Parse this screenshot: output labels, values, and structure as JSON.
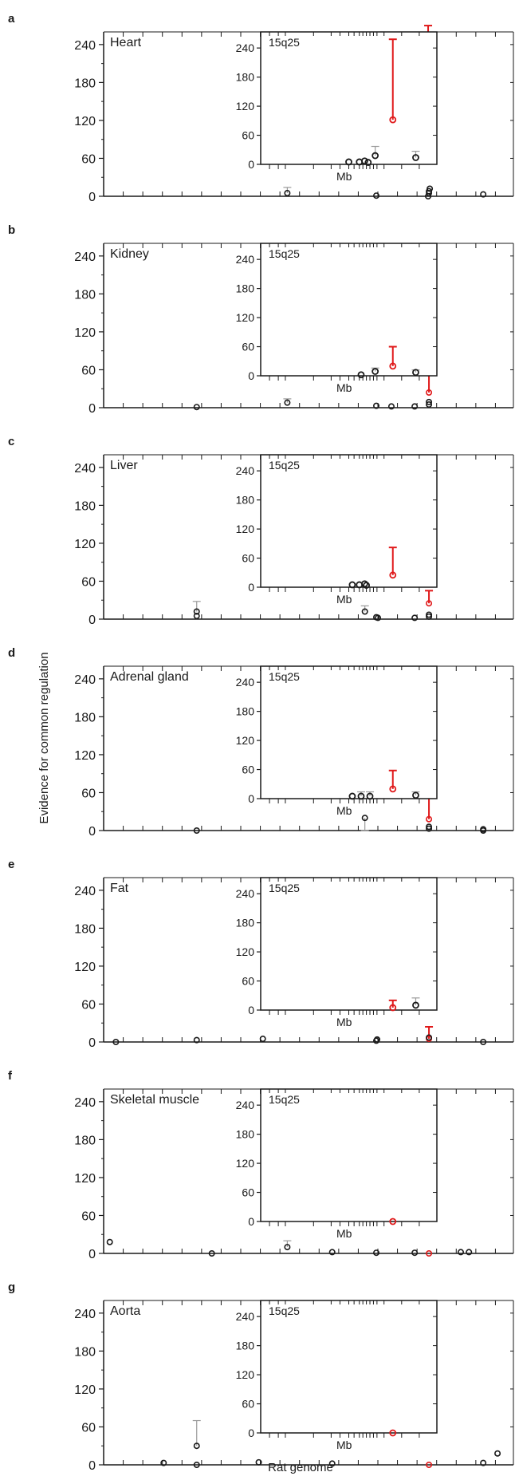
{
  "figure": {
    "ylabel": "Evidence for common regulation",
    "xlabel": "Rat genome",
    "inset_xlabel": "Mb",
    "inset_label": "15q25",
    "colors": {
      "highlight": "#e0191a",
      "ink": "#1a1a1a",
      "errorbar": "#9a9a9a"
    }
  },
  "chart_data": [
    {
      "panel": "a",
      "type": "scatter",
      "title": "Heart",
      "ylim": [
        0,
        260
      ],
      "yticks": [
        0,
        60,
        120,
        180,
        240
      ],
      "points": [
        {
          "x": 0.45,
          "y": 5,
          "err": [
            0,
            14
          ]
        },
        {
          "x": 0.668,
          "y": 1
        },
        {
          "x": 0.795,
          "y": 0
        },
        {
          "x": 0.797,
          "y": 5
        },
        {
          "x": 0.797,
          "y": 8
        },
        {
          "x": 0.799,
          "y": 12
        },
        {
          "x": 0.795,
          "y": 60,
          "err": [
            0,
            270
          ],
          "highlight": true
        },
        {
          "x": 0.93,
          "y": 3
        }
      ],
      "inset": {
        "title": "15q25",
        "ylim": [
          0,
          260
        ],
        "yticks": [
          0,
          60,
          120,
          180,
          240
        ],
        "points": [
          {
            "x": 0.5,
            "y": 5
          },
          {
            "x": 0.56,
            "y": 5
          },
          {
            "x": 0.59,
            "y": 7
          },
          {
            "x": 0.61,
            "y": 4
          },
          {
            "x": 0.65,
            "y": 18,
            "err": [
              0,
              37
            ]
          },
          {
            "x": 0.75,
            "y": 92,
            "err": [
              0,
              258
            ],
            "highlight": true
          },
          {
            "x": 0.88,
            "y": 14,
            "err": [
              0,
              27
            ]
          }
        ]
      }
    },
    {
      "panel": "b",
      "type": "scatter",
      "title": "Kidney",
      "ylim": [
        0,
        260
      ],
      "yticks": [
        0,
        60,
        120,
        180,
        240
      ],
      "points": [
        {
          "x": 0.228,
          "y": 1
        },
        {
          "x": 0.45,
          "y": 8,
          "err": [
            0,
            14
          ]
        },
        {
          "x": 0.668,
          "y": 3
        },
        {
          "x": 0.705,
          "y": 2
        },
        {
          "x": 0.762,
          "y": 2
        },
        {
          "x": 0.797,
          "y": 5
        },
        {
          "x": 0.797,
          "y": 9
        },
        {
          "x": 0.797,
          "y": 24,
          "err": [
            0,
            78
          ],
          "highlight": true
        }
      ],
      "inset": {
        "title": "15q25",
        "ylim": [
          0,
          260
        ],
        "yticks": [
          0,
          60,
          120,
          180,
          240
        ],
        "points": [
          {
            "x": 0.57,
            "y": 2
          },
          {
            "x": 0.65,
            "y": 9,
            "err": [
              0,
              16
            ]
          },
          {
            "x": 0.75,
            "y": 20,
            "err": [
              0,
              60
            ],
            "highlight": true
          },
          {
            "x": 0.88,
            "y": 7,
            "err": [
              0,
              12
            ]
          }
        ]
      }
    },
    {
      "panel": "c",
      "type": "scatter",
      "title": "Liver",
      "ylim": [
        0,
        260
      ],
      "yticks": [
        0,
        60,
        120,
        180,
        240
      ],
      "points": [
        {
          "x": 0.228,
          "y": 5
        },
        {
          "x": 0.228,
          "y": 12,
          "err": [
            0,
            28
          ]
        },
        {
          "x": 0.64,
          "y": 12,
          "err": [
            0,
            21
          ]
        },
        {
          "x": 0.668,
          "y": 3
        },
        {
          "x": 0.672,
          "y": 2
        },
        {
          "x": 0.762,
          "y": 2
        },
        {
          "x": 0.797,
          "y": 4
        },
        {
          "x": 0.797,
          "y": 7
        },
        {
          "x": 0.797,
          "y": 25,
          "err": [
            0,
            45
          ],
          "highlight": true
        }
      ],
      "inset": {
        "title": "15q25",
        "ylim": [
          0,
          260
        ],
        "yticks": [
          0,
          60,
          120,
          180,
          240
        ],
        "points": [
          {
            "x": 0.52,
            "y": 5
          },
          {
            "x": 0.56,
            "y": 5
          },
          {
            "x": 0.59,
            "y": 7
          },
          {
            "x": 0.6,
            "y": 4
          },
          {
            "x": 0.75,
            "y": 25,
            "err": [
              0,
              82
            ],
            "highlight": true
          }
        ]
      }
    },
    {
      "panel": "d",
      "type": "scatter",
      "title": "Adrenal gland",
      "ylim": [
        0,
        260
      ],
      "yticks": [
        0,
        60,
        120,
        180,
        240
      ],
      "points": [
        {
          "x": 0.228,
          "y": 0
        },
        {
          "x": 0.64,
          "y": 20,
          "err": [
            0,
            0
          ]
        },
        {
          "x": 0.797,
          "y": 3
        },
        {
          "x": 0.797,
          "y": 6
        },
        {
          "x": 0.797,
          "y": 18,
          "err": [
            0,
            75
          ],
          "highlight": true
        },
        {
          "x": 0.93,
          "y": 0
        },
        {
          "x": 0.93,
          "y": 2
        }
      ],
      "inset": {
        "title": "15q25",
        "ylim": [
          0,
          260
        ],
        "yticks": [
          0,
          60,
          120,
          180,
          240
        ],
        "points": [
          {
            "x": 0.52,
            "y": 5
          },
          {
            "x": 0.57,
            "y": 5,
            "err": [
              0,
              14
            ]
          },
          {
            "x": 0.62,
            "y": 5,
            "err": [
              0,
              14
            ]
          },
          {
            "x": 0.75,
            "y": 20,
            "err": [
              0,
              58
            ],
            "highlight": true
          },
          {
            "x": 0.88,
            "y": 7,
            "err": [
              0,
              14
            ]
          }
        ]
      }
    },
    {
      "panel": "e",
      "type": "scatter",
      "title": "Fat",
      "ylim": [
        0,
        260
      ],
      "yticks": [
        0,
        60,
        120,
        180,
        240
      ],
      "points": [
        {
          "x": 0.03,
          "y": 0
        },
        {
          "x": 0.228,
          "y": 3
        },
        {
          "x": 0.39,
          "y": 5
        },
        {
          "x": 0.668,
          "y": 2
        },
        {
          "x": 0.67,
          "y": 4
        },
        {
          "x": 0.797,
          "y": 5,
          "err": [
            0,
            24
          ],
          "highlight": true
        },
        {
          "x": 0.797,
          "y": 7
        },
        {
          "x": 0.93,
          "y": 0
        }
      ],
      "inset": {
        "title": "15q25",
        "ylim": [
          0,
          260
        ],
        "yticks": [
          0,
          60,
          120,
          180,
          240
        ],
        "points": [
          {
            "x": 0.75,
            "y": 5,
            "err": [
              0,
              20
            ],
            "highlight": true
          },
          {
            "x": 0.88,
            "y": 10,
            "err": [
              0,
              25
            ]
          }
        ]
      }
    },
    {
      "panel": "f",
      "type": "scatter",
      "title": "Skeletal muscle",
      "ylim": [
        0,
        260
      ],
      "yticks": [
        0,
        60,
        120,
        180,
        240
      ],
      "points": [
        {
          "x": 0.015,
          "y": 18
        },
        {
          "x": 0.265,
          "y": 0
        },
        {
          "x": 0.45,
          "y": 10,
          "err": [
            0,
            20
          ]
        },
        {
          "x": 0.56,
          "y": 2
        },
        {
          "x": 0.668,
          "y": 1
        },
        {
          "x": 0.762,
          "y": 1
        },
        {
          "x": 0.797,
          "y": 0,
          "highlight": true
        },
        {
          "x": 0.875,
          "y": 2
        },
        {
          "x": 0.895,
          "y": 2
        }
      ],
      "inset": {
        "title": "15q25",
        "ylim": [
          0,
          260
        ],
        "yticks": [
          0,
          60,
          120,
          180,
          240
        ],
        "points": [
          {
            "x": 0.75,
            "y": 0,
            "highlight": true
          }
        ]
      }
    },
    {
      "panel": "g",
      "type": "scatter",
      "title": "Aorta",
      "ylim": [
        0,
        260
      ],
      "yticks": [
        0,
        60,
        120,
        180,
        240
      ],
      "points": [
        {
          "x": 0.147,
          "y": 3
        },
        {
          "x": 0.228,
          "y": 30,
          "err": [
            0,
            70
          ]
        },
        {
          "x": 0.228,
          "y": 0
        },
        {
          "x": 0.38,
          "y": 4
        },
        {
          "x": 0.56,
          "y": 2
        },
        {
          "x": 0.797,
          "y": 0,
          "highlight": true
        },
        {
          "x": 0.93,
          "y": 3
        },
        {
          "x": 0.965,
          "y": 18
        }
      ],
      "inset": {
        "title": "15q25",
        "ylim": [
          0,
          260
        ],
        "yticks": [
          0,
          60,
          120,
          180,
          240
        ],
        "points": [
          {
            "x": 0.75,
            "y": 0,
            "highlight": true
          }
        ]
      }
    }
  ]
}
